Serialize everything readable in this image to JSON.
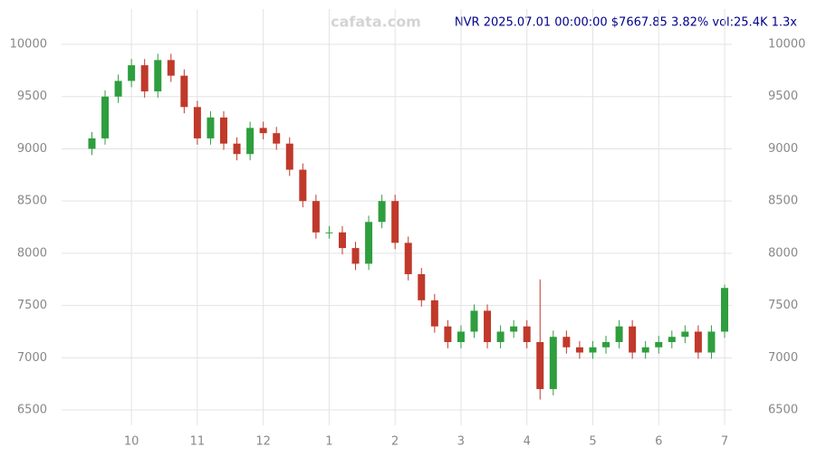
{
  "chart_data": {
    "type": "candlestick",
    "watermark": "cafata.com",
    "title": "NVR 2025.07.01 00:00:00 $7667.85 3.82% vol:25.4K 1.3x",
    "x": [
      9.4,
      9.6,
      9.8,
      10.0,
      10.2,
      10.4,
      10.6,
      10.8,
      11.0,
      11.2,
      11.4,
      11.6,
      11.8,
      12.0,
      12.2,
      12.4,
      12.6,
      12.8,
      13.0,
      13.2,
      13.4,
      13.6,
      13.8,
      14.0,
      14.2,
      14.4,
      14.6,
      14.8,
      15.0,
      15.2,
      15.4,
      15.6,
      15.8,
      16.0,
      16.2,
      16.4,
      16.6,
      16.8,
      17.0,
      17.2,
      17.4,
      17.6,
      17.8,
      18.0,
      18.2,
      18.4,
      18.6,
      18.8,
      19.0
    ],
    "open": [
      9000,
      9100,
      9500,
      9650,
      9800,
      9550,
      9850,
      9700,
      9400,
      9100,
      9300,
      9050,
      8950,
      9200,
      9150,
      9050,
      8800,
      8500,
      8200,
      8200,
      8050,
      7900,
      8300,
      8500,
      8100,
      7800,
      7550,
      7300,
      7150,
      7250,
      7450,
      7150,
      7250,
      7300,
      7150,
      6700,
      7200,
      7100,
      7050,
      7100,
      7150,
      7300,
      7050,
      7100,
      7150,
      7200,
      7250,
      7050,
      7250
    ],
    "high": [
      9160,
      9560,
      9710,
      9860,
      9860,
      9910,
      9910,
      9760,
      9460,
      9360,
      9360,
      9110,
      9260,
      9260,
      9210,
      9110,
      8860,
      8560,
      8260,
      8260,
      8110,
      8360,
      8560,
      8560,
      8160,
      7860,
      7610,
      7360,
      7310,
      7510,
      7510,
      7310,
      7360,
      7360,
      7750,
      7260,
      7260,
      7160,
      7160,
      7210,
      7360,
      7360,
      7160,
      7210,
      7260,
      7310,
      7310,
      7310,
      7700
    ],
    "low": [
      8940,
      9040,
      9440,
      9590,
      9490,
      9490,
      9640,
      9340,
      9040,
      9040,
      8990,
      8890,
      8890,
      9090,
      8990,
      8740,
      8440,
      8140,
      8140,
      7990,
      7840,
      7840,
      8240,
      8040,
      7740,
      7490,
      7240,
      7090,
      7090,
      7190,
      7090,
      7090,
      7190,
      7090,
      6600,
      6640,
      7040,
      6990,
      6990,
      7040,
      7090,
      6990,
      6990,
      7040,
      7090,
      7140,
      6990,
      6990,
      7190
    ],
    "close": [
      9100,
      9500,
      9650,
      9800,
      9550,
      9850,
      9700,
      9400,
      9100,
      9300,
      9050,
      8950,
      9200,
      9150,
      9050,
      8800,
      8500,
      8200,
      8200,
      8050,
      7900,
      8300,
      8500,
      8100,
      7800,
      7550,
      7300,
      7150,
      7250,
      7450,
      7150,
      7250,
      7300,
      7150,
      6700,
      7200,
      7100,
      7050,
      7100,
      7150,
      7300,
      7050,
      7100,
      7150,
      7200,
      7250,
      7050,
      7250,
      7667.85
    ],
    "up_color": "#2e9e3e",
    "down_color": "#c0392b",
    "xlim": [
      8.94,
      19.11
    ],
    "xticks": [
      10,
      11,
      12,
      {
        "value": 13,
        "label": "1"
      },
      {
        "value": 14,
        "label": "2"
      },
      {
        "value": 15,
        "label": "3"
      },
      {
        "value": 16,
        "label": "4"
      },
      {
        "value": 17,
        "label": "5"
      },
      {
        "value": 18,
        "label": "6"
      },
      {
        "value": 19,
        "label": "7"
      }
    ],
    "ylim": [
      6353,
      10338
    ],
    "yticks": [
      6500,
      7000,
      7500,
      8000,
      8500,
      9000,
      9500,
      10000
    ],
    "grid": true
  }
}
